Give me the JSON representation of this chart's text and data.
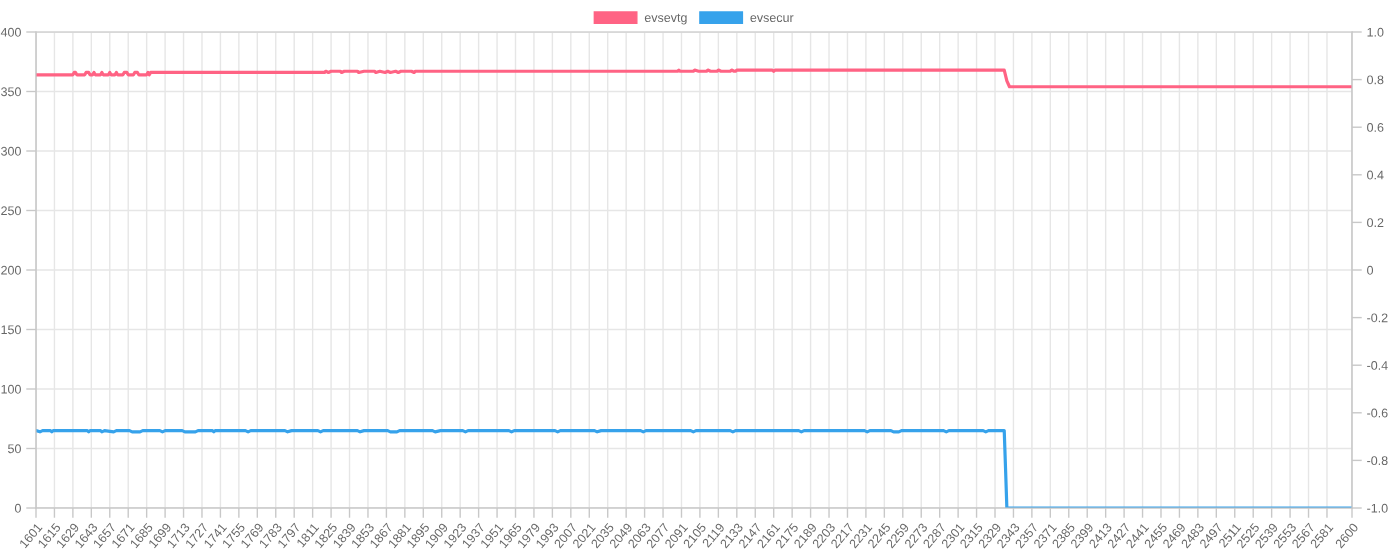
{
  "chart_data": {
    "type": "line",
    "xlim": [
      1601,
      2600
    ],
    "xticks": [
      1601,
      1615,
      1629,
      1643,
      1657,
      1671,
      1685,
      1699,
      1713,
      1727,
      1741,
      1755,
      1769,
      1783,
      1797,
      1811,
      1825,
      1839,
      1853,
      1867,
      1881,
      1895,
      1909,
      1923,
      1937,
      1951,
      1965,
      1979,
      1993,
      2007,
      2021,
      2035,
      2049,
      2063,
      2077,
      2091,
      2105,
      2119,
      2133,
      2147,
      2161,
      2175,
      2189,
      2203,
      2217,
      2231,
      2245,
      2259,
      2273,
      2287,
      2301,
      2315,
      2329,
      2343,
      2357,
      2371,
      2385,
      2399,
      2413,
      2427,
      2441,
      2455,
      2469,
      2483,
      2497,
      2511,
      2525,
      2539,
      2553,
      2567,
      2581,
      2600
    ],
    "ylim": [
      0,
      400
    ],
    "yticks": [
      0,
      50,
      100,
      150,
      200,
      250,
      300,
      350,
      400
    ],
    "y2lim": [
      -1,
      1
    ],
    "y2ticks": [
      {
        "value": -1,
        "label": "-1.0"
      },
      -0.8,
      -0.6,
      -0.4,
      -0.2,
      0,
      0.2,
      0.4,
      0.6,
      0.8,
      {
        "value": 1,
        "label": "1.0"
      }
    ],
    "grid": true,
    "legend": "top",
    "marker": "none",
    "line_style": "solid",
    "series": [
      {
        "name": "evsevtg",
        "color": "#ff6384",
        "x": [
          1601,
          1629,
          1630,
          1631,
          1632,
          1638,
          1639,
          1641,
          1642,
          1644,
          1645,
          1646,
          1650,
          1651,
          1652,
          1656,
          1657,
          1658,
          1661,
          1662,
          1663,
          1667,
          1668,
          1670,
          1671,
          1675,
          1676,
          1678,
          1679,
          1685,
          1686,
          1687,
          1688,
          1689,
          1820,
          1821,
          1823,
          1825,
          1832,
          1833,
          1835,
          1845,
          1846,
          1850,
          1858,
          1859,
          1862,
          1866,
          1868,
          1870,
          1874,
          1876,
          1878,
          1886,
          1888,
          1889,
          2088,
          2089,
          2090,
          2100,
          2101,
          2104,
          2110,
          2111,
          2113,
          2118,
          2119,
          2121,
          2128,
          2129,
          2131,
          2132,
          2133,
          2160,
          2161,
          2162,
          2336,
          2338,
          2340,
          2600
        ],
        "values": [
          364,
          364,
          366,
          366,
          364,
          364,
          366,
          366,
          364,
          364,
          366,
          364,
          364,
          366,
          364,
          364,
          366,
          364,
          364,
          366,
          364,
          364,
          366,
          366,
          364,
          364,
          366,
          366,
          364,
          364,
          366,
          364,
          366,
          366,
          366,
          367,
          366,
          367,
          367,
          366,
          367,
          367,
          366,
          367,
          367,
          366,
          367,
          366,
          367,
          366,
          367,
          366,
          367,
          367,
          366,
          367,
          367,
          368,
          367,
          367,
          368,
          367,
          367,
          368,
          367,
          367,
          368,
          367,
          367,
          368,
          367,
          367,
          368,
          368,
          367,
          368,
          368,
          359,
          354,
          354
        ]
      },
      {
        "name": "evsecur",
        "color": "#36a2eb",
        "x": [
          1601,
          1604,
          1606,
          1612,
          1613,
          1614,
          1640,
          1641,
          1642,
          1650,
          1651,
          1653,
          1660,
          1662,
          1672,
          1674,
          1680,
          1682,
          1695,
          1697,
          1699,
          1712,
          1714,
          1722,
          1724,
          1735,
          1736,
          1737,
          1760,
          1762,
          1764,
          1790,
          1792,
          1795,
          1815,
          1817,
          1819,
          1845,
          1847,
          1850,
          1868,
          1870,
          1875,
          1877,
          1902,
          1904,
          1908,
          1925,
          1927,
          1929,
          1960,
          1962,
          1964,
          1995,
          1997,
          1999,
          2025,
          2027,
          2030,
          2060,
          2062,
          2064,
          2098,
          2100,
          2102,
          2128,
          2130,
          2132,
          2180,
          2182,
          2184,
          2230,
          2232,
          2234,
          2250,
          2252,
          2256,
          2258,
          2290,
          2292,
          2294,
          2320,
          2322,
          2324,
          2336,
          2337,
          2338,
          2600
        ],
        "values": [
          65,
          64,
          65,
          65,
          64,
          65,
          65,
          64,
          65,
          65,
          64,
          65,
          64,
          65,
          65,
          64,
          64,
          65,
          65,
          64,
          65,
          65,
          64,
          64,
          65,
          65,
          64,
          65,
          65,
          64,
          65,
          65,
          64,
          65,
          65,
          64,
          65,
          65,
          64,
          65,
          65,
          64,
          64,
          65,
          65,
          64,
          65,
          65,
          64,
          65,
          65,
          64,
          65,
          65,
          64,
          65,
          65,
          64,
          65,
          65,
          64,
          65,
          65,
          64,
          65,
          65,
          64,
          65,
          65,
          64,
          65,
          65,
          64,
          65,
          65,
          64,
          64,
          65,
          65,
          64,
          65,
          65,
          64,
          65,
          65,
          33,
          0,
          0
        ]
      }
    ]
  }
}
